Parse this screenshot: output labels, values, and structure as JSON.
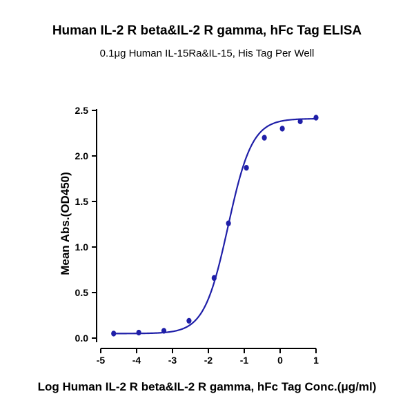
{
  "chart_data": {
    "type": "scatter",
    "title": "Human IL-2 R beta&IL-2 R gamma, hFc Tag ELISA",
    "subtitle": "0.1μg Human IL-15Ra&IL-15, His Tag Per Well",
    "xlabel": "Log Human IL-2 R beta&IL-2 R gamma, hFc Tag Conc.(μg/ml)",
    "ylabel": "Mean Abs.(OD450)",
    "xlim": [
      -5,
      1
    ],
    "ylim": [
      0,
      2.5
    ],
    "x_ticks": [
      "-5",
      "-4",
      "-3",
      "-2",
      "-1",
      "0",
      "1"
    ],
    "y_ticks": [
      "0.0",
      "0.5",
      "1.0",
      "1.5",
      "2.0",
      "2.5"
    ],
    "grid": false,
    "legend": "none",
    "series": [
      {
        "points": [
          {
            "x": -4.64,
            "y": 0.05
          },
          {
            "x": -3.94,
            "y": 0.06
          },
          {
            "x": -3.24,
            "y": 0.08
          },
          {
            "x": -2.54,
            "y": 0.19
          },
          {
            "x": -1.84,
            "y": 0.66
          },
          {
            "x": -1.44,
            "y": 1.26
          },
          {
            "x": -0.94,
            "y": 1.87
          },
          {
            "x": -0.44,
            "y": 2.2
          },
          {
            "x": 0.06,
            "y": 2.3
          },
          {
            "x": 0.56,
            "y": 2.38
          },
          {
            "x": 1.0,
            "y": 2.42
          }
        ],
        "fit": {
          "bottom": 0.05,
          "top": 2.41,
          "log_ec50": -1.45,
          "hill_slope": 1.3
        }
      }
    ],
    "color": "#1f1fa8"
  }
}
